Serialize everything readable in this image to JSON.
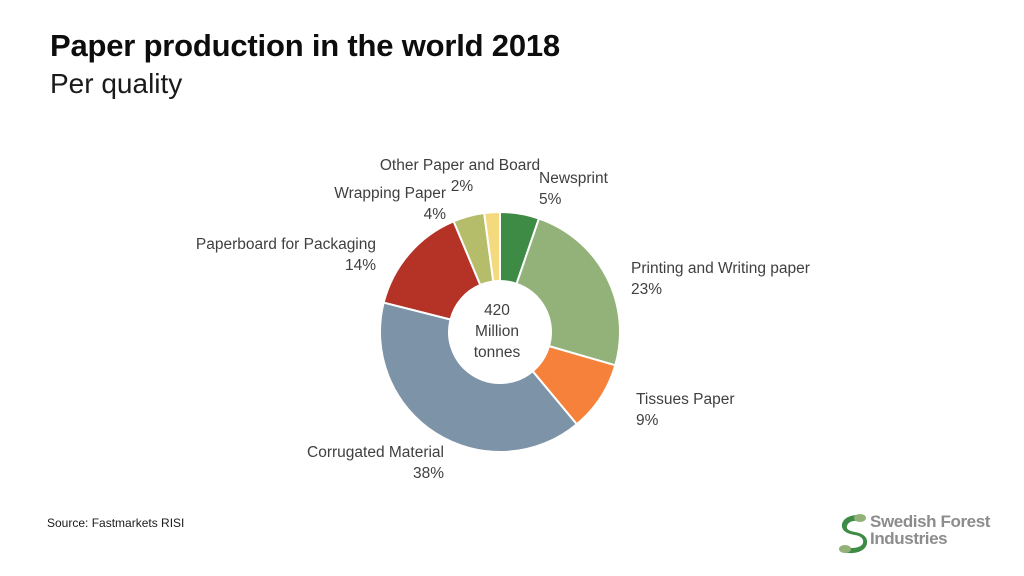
{
  "header": {
    "title": "Paper production in the world 2018",
    "subtitle": "Per quality"
  },
  "footer": {
    "source": "Source: Fastmarkets RISI",
    "logo_line1": "Swedish Forest",
    "logo_line2": "Industries"
  },
  "chart_data": {
    "type": "donut",
    "title": "Paper production in the world 2018",
    "subtitle": "Per quality",
    "center_text": [
      "420",
      "Million",
      "tonnes"
    ],
    "unit": "%",
    "slices": [
      {
        "name": "Newsprint",
        "value": 5,
        "label": "5%",
        "color": "#3d8b45"
      },
      {
        "name": "Printing and Writing paper",
        "value": 23,
        "label": "23%",
        "color": "#93b27a"
      },
      {
        "name": "Tissues Paper",
        "value": 9,
        "label": "9%",
        "color": "#f5813a"
      },
      {
        "name": "Corrugated Material",
        "value": 38,
        "label": "38%",
        "color": "#7d93a8"
      },
      {
        "name": "Paperboard for Packaging",
        "value": 14,
        "label": "14%",
        "color": "#b43326"
      },
      {
        "name": "Wrapping Paper",
        "value": 4,
        "label": "4%",
        "color": "#b5bc6a"
      },
      {
        "name": "Other Paper and Board",
        "value": 2,
        "label": "2%",
        "color": "#f5d97f"
      }
    ],
    "legend": "none"
  }
}
